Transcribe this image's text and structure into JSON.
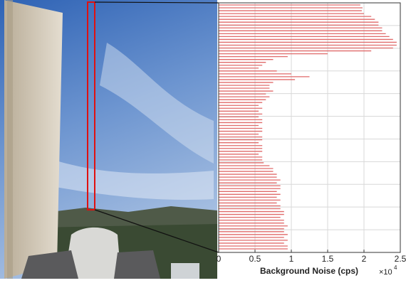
{
  "chart_data": {
    "type": "hbar",
    "xlabel": "Background Noise (cps)",
    "x_multiplier": "×10",
    "x_multiplier_exp": "4",
    "values": [
      1.95,
      1.98,
      1.97,
      2.0,
      2.1,
      2.15,
      2.2,
      2.2,
      2.25,
      2.25,
      2.3,
      2.35,
      2.4,
      2.45,
      2.45,
      2.4,
      2.1,
      1.5,
      0.95,
      0.75,
      0.65,
      0.6,
      0.55,
      0.8,
      1.0,
      1.25,
      1.05,
      0.75,
      0.7,
      0.7,
      0.75,
      0.65,
      0.7,
      0.65,
      0.6,
      0.55,
      0.6,
      0.55,
      0.6,
      0.55,
      0.6,
      0.6,
      0.55,
      0.6,
      0.6,
      0.55,
      0.6,
      0.6,
      0.55,
      0.6,
      0.6,
      0.6,
      0.55,
      0.6,
      0.6,
      0.62,
      0.7,
      0.75,
      0.75,
      0.8,
      0.8,
      0.85,
      0.8,
      0.85,
      0.85,
      0.8,
      0.85,
      0.8,
      0.85,
      0.8,
      0.85,
      0.85,
      0.9,
      0.9,
      0.85,
      0.9,
      0.9,
      0.95,
      0.9,
      0.9,
      0.95,
      0.9,
      0.95,
      0.9,
      0.95,
      0.95
    ],
    "color": "#e06a6a",
    "xlim": [
      0,
      2.5
    ],
    "xticks": [
      0,
      0.5,
      1,
      1.5,
      2,
      2.5
    ],
    "grid": true
  }
}
